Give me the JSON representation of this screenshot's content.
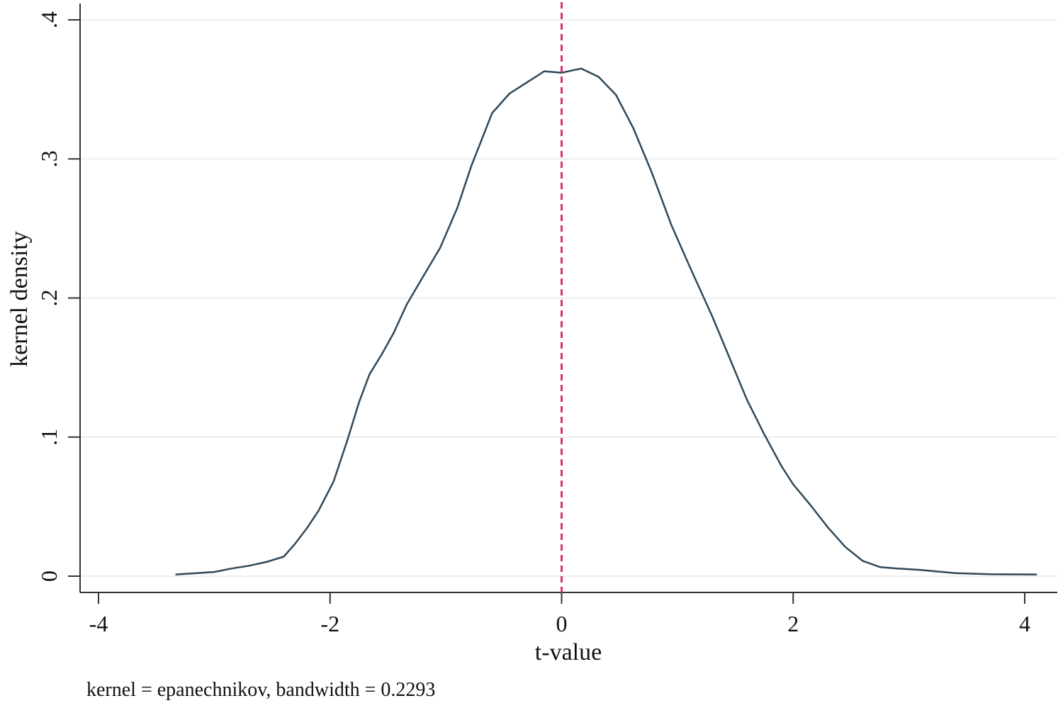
{
  "chart_data": {
    "type": "line",
    "title": "",
    "xlabel": "t-value",
    "ylabel": "kernel density",
    "note": "kernel = epanechnikov, bandwidth = 0.2293",
    "xlim": [
      -4,
      4
    ],
    "ylim": [
      0,
      0.4
    ],
    "x_ticks": [
      -4,
      -2,
      0,
      2,
      4
    ],
    "x_tick_labels": [
      "-4",
      "-2",
      "0",
      "2",
      "4"
    ],
    "y_ticks": [
      0,
      0.1,
      0.2,
      0.3,
      0.4
    ],
    "y_tick_labels": [
      "0",
      ".1",
      ".2",
      ".3",
      ".4"
    ],
    "grid": "horizontal",
    "reference_line": {
      "x": 0,
      "style": "dashed",
      "color": "#d6336c"
    },
    "series": [
      {
        "color": "#2f4858",
        "x": [
          -3.33,
          -3.0,
          -2.85,
          -2.7,
          -2.55,
          -2.4,
          -2.3,
          -2.2,
          -2.1,
          -1.97,
          -1.85,
          -1.75,
          -1.66,
          -1.55,
          -1.45,
          -1.34,
          -1.2,
          -1.05,
          -0.9,
          -0.78,
          -0.6,
          -0.45,
          -0.3,
          -0.15,
          0.0,
          0.17,
          0.32,
          0.47,
          0.62,
          0.78,
          0.95,
          1.12,
          1.3,
          1.45,
          1.6,
          1.75,
          1.9,
          2.0,
          2.15,
          2.3,
          2.45,
          2.6,
          2.75,
          2.9,
          3.1,
          3.4,
          3.7,
          4.1
        ],
        "y": [
          0.0012,
          0.003,
          0.0055,
          0.0075,
          0.0102,
          0.014,
          0.0235,
          0.0345,
          0.047,
          0.068,
          0.098,
          0.125,
          0.145,
          0.16,
          0.175,
          0.195,
          0.215,
          0.236,
          0.265,
          0.295,
          0.333,
          0.347,
          0.355,
          0.363,
          0.362,
          0.365,
          0.359,
          0.346,
          0.322,
          0.29,
          0.252,
          0.22,
          0.187,
          0.157,
          0.127,
          0.102,
          0.079,
          0.066,
          0.051,
          0.035,
          0.021,
          0.011,
          0.0065,
          0.0055,
          0.0045,
          0.0022,
          0.0014,
          0.0012
        ]
      }
    ]
  },
  "colors": {
    "axis": "#333333",
    "grid": "#ececec",
    "line": "#2f4858",
    "reference_line": "#d6336c"
  }
}
